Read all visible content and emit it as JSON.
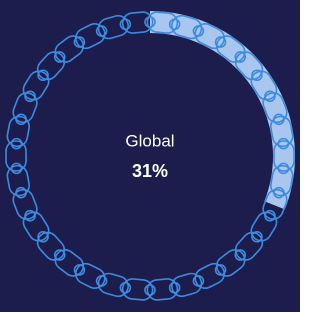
{
  "chart_data": {
    "type": "ring",
    "label": "Global",
    "values": [
      31
    ],
    "value_labels": [
      "31%"
    ],
    "ylim": [
      0,
      100
    ],
    "color": "#a9c7ee",
    "track_color": "#3d8be0",
    "background": "#1c1d4d"
  }
}
